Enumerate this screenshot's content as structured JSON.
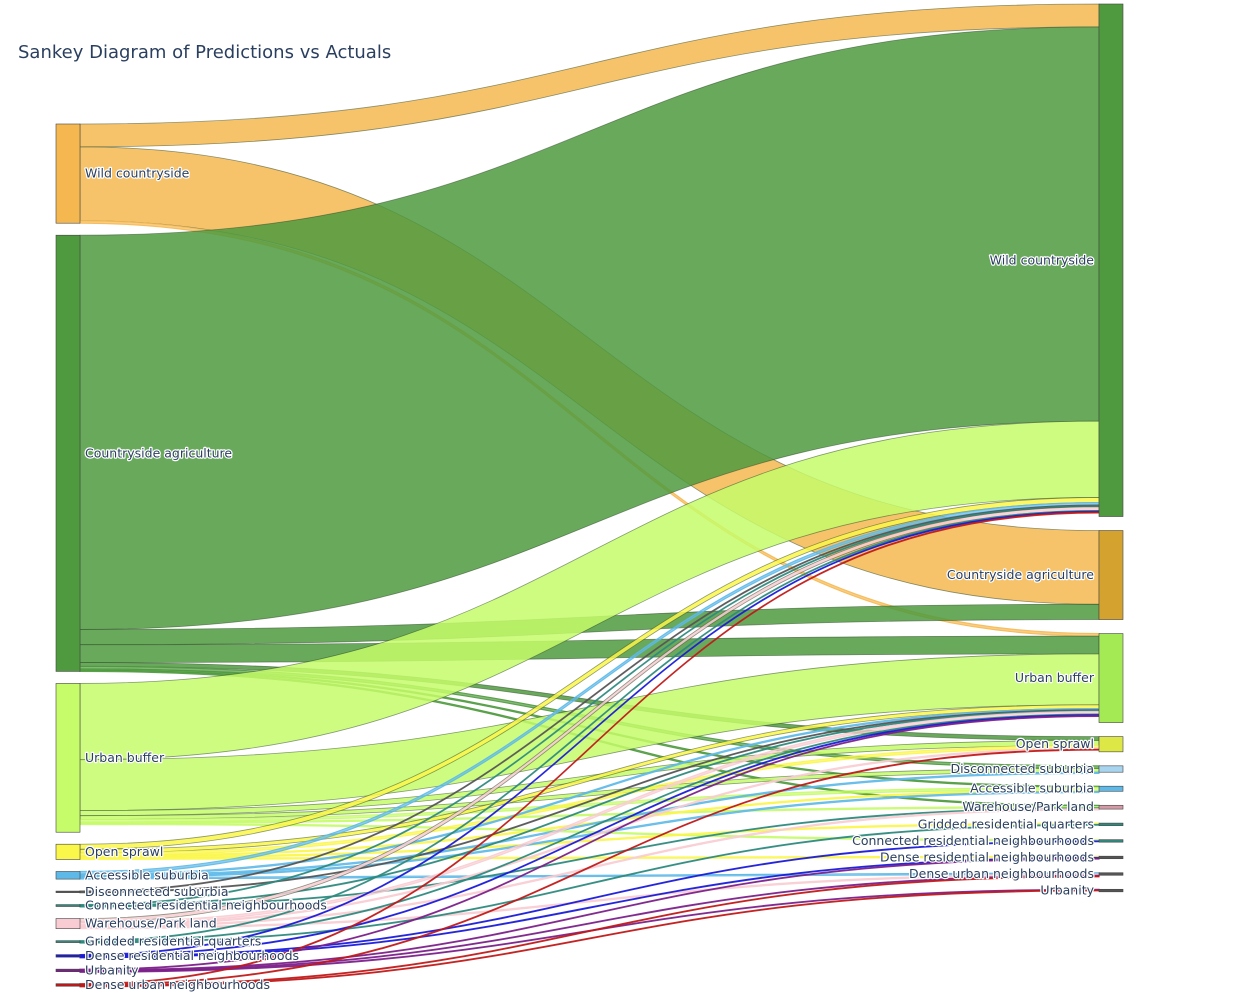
{
  "title": "Sankey Diagram of Predictions vs Actuals",
  "chart_data": {
    "type": "sankey",
    "title": "Sankey Diagram of Predictions vs Actuals",
    "sources": [
      {
        "label": "Wild countryside",
        "color": "#f5b851",
        "total": 78
      },
      {
        "label": "Countryside agriculture",
        "color": "#4f9a3e",
        "total": 343
      },
      {
        "label": "Urban buffer",
        "color": "#c6fb6a",
        "total": 117
      },
      {
        "label": "Open sprawl",
        "color": "#fbf64a",
        "total": 12
      },
      {
        "label": "Accessible suburbia",
        "color": "#5eb9e8",
        "total": 6
      },
      {
        "label": "Disconnected suburbia",
        "color": "#555555",
        "total": 1
      },
      {
        "label": "Connected residential neighbourhoods",
        "color": "#2e8a7e",
        "total": 1.5
      },
      {
        "label": "Warehouse/Park land",
        "color": "#f8ccd2",
        "total": 8
      },
      {
        "label": "Gridded residential quarters",
        "color": "#2e8a7e",
        "total": 1.5
      },
      {
        "label": "Dense residential neighbourhoods",
        "color": "#1a1ad8",
        "total": 2
      },
      {
        "label": "Urbanity",
        "color": "#7b1f8a",
        "total": 2
      },
      {
        "label": "Dense urban neighbourhoods",
        "color": "#c01818",
        "total": 2
      }
    ],
    "targets": [
      {
        "label": "Wild countryside",
        "color": "#4f9a3e",
        "total": 403
      },
      {
        "label": "Countryside agriculture",
        "color": "#d4a22f",
        "total": 70
      },
      {
        "label": "Urban buffer",
        "color": "#a4ea55",
        "total": 70
      },
      {
        "label": "Open sprawl",
        "color": "#dde846",
        "total": 12
      },
      {
        "label": "Disconnected suburbia",
        "color": "#a8d4f0",
        "total": 5
      },
      {
        "label": "Accessible suburbia",
        "color": "#5eb9e8",
        "total": 4
      },
      {
        "label": "Warehouse/Park land",
        "color": "#d59aa8",
        "total": 3
      },
      {
        "label": "Gridded residential quarters",
        "color": "#2e8a7e",
        "total": 2
      },
      {
        "label": "Connected residential neighbourhoods",
        "color": "#2e8a7e",
        "total": 2
      },
      {
        "label": "Dense residential neighbourhoods",
        "color": "#555555",
        "total": 2
      },
      {
        "label": "Dense urban neighbourhoods",
        "color": "#555555",
        "total": 2
      },
      {
        "label": "Urbanity",
        "color": "#555555",
        "total": 2
      }
    ],
    "flows": [
      {
        "source": 0,
        "target": 0,
        "value": 18
      },
      {
        "source": 0,
        "target": 1,
        "value": 58
      },
      {
        "source": 0,
        "target": 2,
        "value": 2
      },
      {
        "source": 1,
        "target": 0,
        "value": 310
      },
      {
        "source": 1,
        "target": 1,
        "value": 12
      },
      {
        "source": 1,
        "target": 2,
        "value": 14
      },
      {
        "source": 1,
        "target": 3,
        "value": 3
      },
      {
        "source": 1,
        "target": 4,
        "value": 2
      },
      {
        "source": 1,
        "target": 5,
        "value": 1
      },
      {
        "source": 1,
        "target": 6,
        "value": 1
      },
      {
        "source": 2,
        "target": 0,
        "value": 60
      },
      {
        "source": 2,
        "target": 2,
        "value": 40
      },
      {
        "source": 2,
        "target": 3,
        "value": 4
      },
      {
        "source": 2,
        "target": 4,
        "value": 3
      },
      {
        "source": 2,
        "target": 5,
        "value": 2
      },
      {
        "source": 2,
        "target": 6,
        "value": 1
      },
      {
        "source": 2,
        "target": 8,
        "value": 1
      },
      {
        "source": 3,
        "target": 0,
        "value": 4
      },
      {
        "source": 3,
        "target": 2,
        "value": 3
      },
      {
        "source": 3,
        "target": 3,
        "value": 2
      },
      {
        "source": 3,
        "target": 5,
        "value": 1
      },
      {
        "source": 3,
        "target": 7,
        "value": 1
      },
      {
        "source": 3,
        "target": 9,
        "value": 1
      },
      {
        "source": 4,
        "target": 0,
        "value": 2
      },
      {
        "source": 4,
        "target": 2,
        "value": 1
      },
      {
        "source": 4,
        "target": 4,
        "value": 1
      },
      {
        "source": 4,
        "target": 5,
        "value": 1
      },
      {
        "source": 4,
        "target": 10,
        "value": 1
      },
      {
        "source": 5,
        "target": 0,
        "value": 0.5
      },
      {
        "source": 5,
        "target": 2,
        "value": 0.5
      },
      {
        "source": 6,
        "target": 0,
        "value": 0.5
      },
      {
        "source": 6,
        "target": 2,
        "value": 0.5
      },
      {
        "source": 6,
        "target": 6,
        "value": 0.5
      },
      {
        "source": 7,
        "target": 0,
        "value": 3
      },
      {
        "source": 7,
        "target": 2,
        "value": 2
      },
      {
        "source": 7,
        "target": 3,
        "value": 1
      },
      {
        "source": 7,
        "target": 6,
        "value": 1
      },
      {
        "source": 7,
        "target": 10,
        "value": 1
      },
      {
        "source": 8,
        "target": 0,
        "value": 0.5
      },
      {
        "source": 8,
        "target": 2,
        "value": 0.5
      },
      {
        "source": 8,
        "target": 7,
        "value": 0.5
      },
      {
        "source": 9,
        "target": 0,
        "value": 0.5
      },
      {
        "source": 9,
        "target": 2,
        "value": 0.5
      },
      {
        "source": 9,
        "target": 8,
        "value": 0.5
      },
      {
        "source": 9,
        "target": 9,
        "value": 0.5
      },
      {
        "source": 10,
        "target": 2,
        "value": 0.5
      },
      {
        "source": 10,
        "target": 9,
        "value": 0.5
      },
      {
        "source": 10,
        "target": 10,
        "value": 0.5
      },
      {
        "source": 10,
        "target": 11,
        "value": 0.5
      },
      {
        "source": 11,
        "target": 0,
        "value": 0.5
      },
      {
        "source": 11,
        "target": 3,
        "value": 0.5
      },
      {
        "source": 11,
        "target": 10,
        "value": 0.5
      },
      {
        "source": 11,
        "target": 11,
        "value": 0.5
      }
    ]
  }
}
